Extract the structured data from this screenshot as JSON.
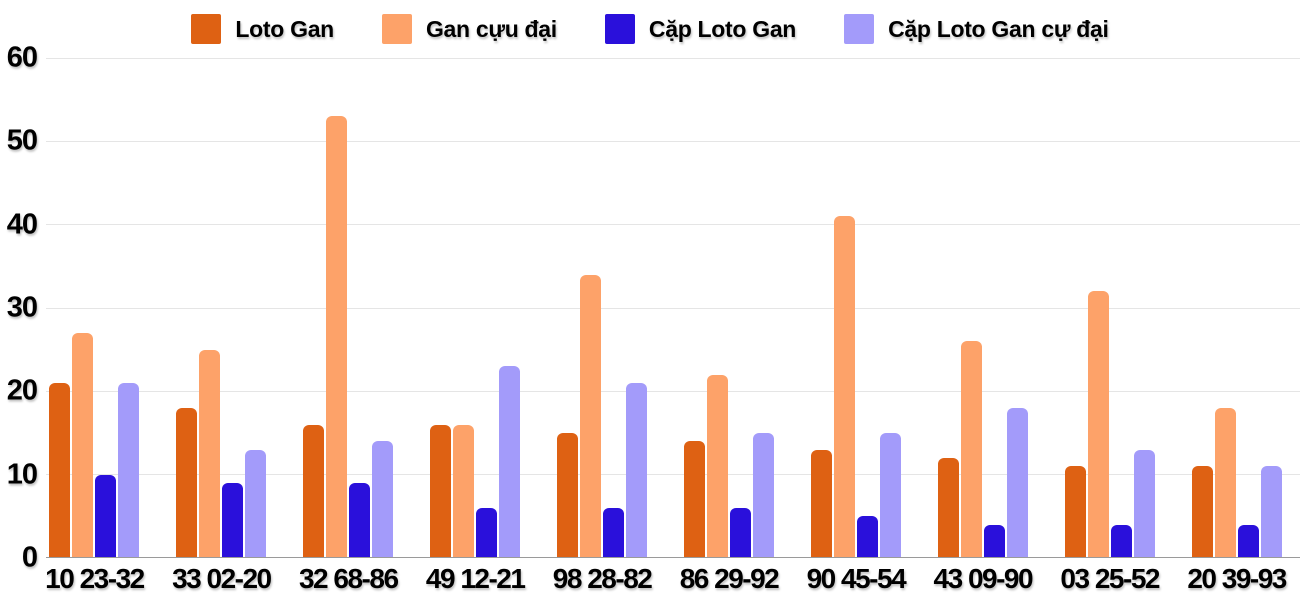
{
  "chart_data": {
    "type": "bar",
    "title": "",
    "xlabel": "",
    "ylabel": "",
    "ylim": [
      0,
      60
    ],
    "yticks": [
      0,
      10,
      20,
      30,
      40,
      50,
      60
    ],
    "grid": true,
    "legend_position": "top",
    "categories": [
      "10 23-32",
      "33 02-20",
      "32 68-86",
      "49 12-21",
      "98 28-82",
      "86 29-92",
      "90 45-54",
      "43 09-90",
      "03 25-52",
      "20 39-93"
    ],
    "series": [
      {
        "name": "Loto Gan",
        "color": "#DE6113",
        "values": [
          21,
          18,
          16,
          16,
          15,
          14,
          13,
          12,
          11,
          11
        ]
      },
      {
        "name": "Gan cựu đại",
        "color": "#FDA269",
        "values": [
          27,
          25,
          53,
          16,
          34,
          22,
          41,
          26,
          32,
          18
        ]
      },
      {
        "name": "Cặp Loto Gan",
        "color": "#2A10DB",
        "values": [
          10,
          9,
          9,
          6,
          6,
          6,
          5,
          4,
          4,
          4
        ]
      },
      {
        "name": "Cặp Loto Gan cự đại",
        "color": "#A39BFA",
        "values": [
          21,
          13,
          14,
          23,
          21,
          15,
          15,
          18,
          13,
          11
        ]
      }
    ],
    "colors": {
      "gridline": "#e5e5e5",
      "axis_line": "#9a9a9a",
      "text": "#000000",
      "background": "#ffffff"
    }
  }
}
